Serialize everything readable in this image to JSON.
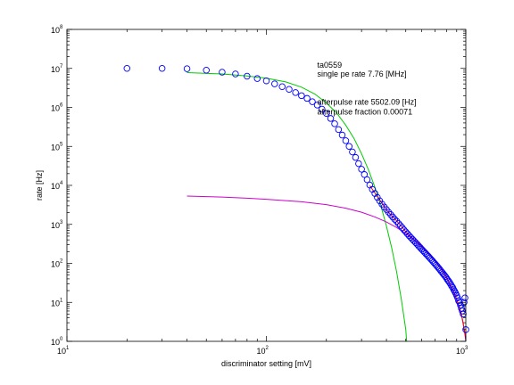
{
  "chart_data": {
    "type": "scatter",
    "xscale": "log",
    "yscale": "log",
    "xlim": [
      10,
      1000
    ],
    "ylim": [
      1,
      100000000
    ],
    "xlabel": "discriminator setting [mV]",
    "ylabel": "rate [Hz]",
    "xticks": [
      {
        "base": "10",
        "exp": "1",
        "value": 10
      },
      {
        "base": "10",
        "exp": "2",
        "value": 100
      },
      {
        "base": "10",
        "exp": "3",
        "value": 1000
      }
    ],
    "yticks": [
      {
        "base": "10",
        "exp": "0",
        "value": 1
      },
      {
        "base": "10",
        "exp": "1",
        "value": 10
      },
      {
        "base": "10",
        "exp": "2",
        "value": 100
      },
      {
        "base": "10",
        "exp": "3",
        "value": 1000
      },
      {
        "base": "10",
        "exp": "4",
        "value": 10000
      },
      {
        "base": "10",
        "exp": "5",
        "value": 100000
      },
      {
        "base": "10",
        "exp": "6",
        "value": 1000000
      },
      {
        "base": "10",
        "exp": "7",
        "value": 10000000
      },
      {
        "base": "10",
        "exp": "8",
        "value": 100000000
      }
    ],
    "grid": false,
    "annotations": [
      {
        "text": "ta0559",
        "x": 180,
        "y": 10500000
      },
      {
        "text": "single pe rate 7.76 [MHz]",
        "x": 180,
        "y": 6200000
      },
      {
        "text": "afterpulse rate 5502.09 [Hz]",
        "x": 180,
        "y": 1160000
      },
      {
        "text": "afterpulse fraction 0.00071",
        "x": 180,
        "y": 660000
      }
    ],
    "series": [
      {
        "marker": "circle",
        "color": "#0000ff",
        "points": [
          [
            20,
            10000000
          ],
          [
            30,
            10000000
          ],
          [
            40,
            9800000
          ],
          [
            50,
            9000000
          ],
          [
            60,
            8000000
          ],
          [
            70,
            7200000
          ],
          [
            80,
            6300000
          ],
          [
            90,
            5500000
          ],
          [
            100,
            4800000
          ],
          [
            110,
            4000000
          ],
          [
            120,
            3400000
          ],
          [
            130,
            2900000
          ],
          [
            140,
            2400000
          ],
          [
            150,
            2000000
          ],
          [
            160,
            1700000
          ],
          [
            170,
            1400000
          ],
          [
            180,
            1150000
          ],
          [
            190,
            900000
          ],
          [
            200,
            700000
          ],
          [
            210,
            520000
          ],
          [
            220,
            380000
          ],
          [
            230,
            270000
          ],
          [
            240,
            195000
          ],
          [
            250,
            140000
          ],
          [
            260,
            100000
          ],
          [
            270,
            72000
          ],
          [
            280,
            52000
          ],
          [
            290,
            36000
          ],
          [
            300,
            26000
          ],
          [
            310,
            19000
          ],
          [
            320,
            14000
          ],
          [
            330,
            10200
          ],
          [
            340,
            7900
          ],
          [
            350,
            6200
          ],
          [
            360,
            4900
          ],
          [
            370,
            4000
          ],
          [
            380,
            3300
          ],
          [
            390,
            2800
          ],
          [
            400,
            2400
          ],
          [
            410,
            2050
          ],
          [
            420,
            1780
          ],
          [
            430,
            1550
          ],
          [
            440,
            1350
          ],
          [
            450,
            1200
          ],
          [
            460,
            1050
          ],
          [
            470,
            930
          ],
          [
            480,
            820
          ],
          [
            490,
            720
          ],
          [
            500,
            640
          ],
          [
            510,
            570
          ],
          [
            520,
            510
          ],
          [
            530,
            460
          ],
          [
            540,
            415
          ],
          [
            550,
            375
          ],
          [
            560,
            340
          ],
          [
            570,
            310
          ],
          [
            580,
            280
          ],
          [
            590,
            255
          ],
          [
            600,
            232
          ],
          [
            610,
            212
          ],
          [
            620,
            194
          ],
          [
            630,
            178
          ],
          [
            640,
            163
          ],
          [
            650,
            150
          ],
          [
            660,
            137
          ],
          [
            670,
            126
          ],
          [
            680,
            116
          ],
          [
            690,
            106
          ],
          [
            700,
            98
          ],
          [
            710,
            90
          ],
          [
            720,
            83
          ],
          [
            730,
            76
          ],
          [
            740,
            70
          ],
          [
            750,
            64
          ],
          [
            760,
            59
          ],
          [
            770,
            54
          ],
          [
            780,
            50
          ],
          [
            790,
            46
          ],
          [
            800,
            42
          ],
          [
            810,
            38
          ],
          [
            820,
            35
          ],
          [
            830,
            32
          ],
          [
            840,
            29
          ],
          [
            850,
            26
          ],
          [
            860,
            24
          ],
          [
            870,
            21
          ],
          [
            880,
            19
          ],
          [
            890,
            17
          ],
          [
            900,
            15
          ],
          [
            910,
            13
          ],
          [
            920,
            11
          ],
          [
            930,
            10
          ],
          [
            940,
            8.5
          ],
          [
            950,
            7
          ],
          [
            960,
            6
          ],
          [
            970,
            5
          ],
          [
            980,
            10
          ],
          [
            990,
            13
          ],
          [
            1000,
            2
          ]
        ]
      },
      {
        "name": "",
        "type": "line",
        "color": "#00cc00",
        "points": [
          [
            40,
            7800000
          ],
          [
            60,
            7200000
          ],
          [
            80,
            6400000
          ],
          [
            100,
            5600000
          ],
          [
            125,
            4500000
          ],
          [
            150,
            3300000
          ],
          [
            175,
            2200000
          ],
          [
            200,
            1300000
          ],
          [
            225,
            720000
          ],
          [
            250,
            350000
          ],
          [
            275,
            160000
          ],
          [
            300,
            65000
          ],
          [
            325,
            25000
          ],
          [
            350,
            9000
          ],
          [
            375,
            3000
          ],
          [
            400,
            900
          ],
          [
            425,
            250
          ],
          [
            450,
            60
          ],
          [
            475,
            12
          ],
          [
            500,
            2
          ],
          [
            505,
            1
          ]
        ]
      },
      {
        "name": "",
        "type": "line",
        "color": "#cc00cc",
        "points": [
          [
            40,
            5300
          ],
          [
            60,
            5000
          ],
          [
            80,
            4700
          ],
          [
            100,
            4400
          ],
          [
            150,
            3800
          ],
          [
            200,
            3200
          ],
          [
            250,
            2600
          ],
          [
            300,
            2050
          ],
          [
            350,
            1550
          ],
          [
            400,
            1150
          ],
          [
            450,
            830
          ],
          [
            500,
            580
          ],
          [
            550,
            400
          ],
          [
            600,
            270
          ],
          [
            650,
            180
          ],
          [
            700,
            115
          ],
          [
            750,
            72
          ],
          [
            800,
            43
          ],
          [
            850,
            24
          ],
          [
            900,
            12
          ],
          [
            950,
            5
          ],
          [
            980,
            2.2
          ],
          [
            1000,
            1
          ]
        ]
      },
      {
        "name": "",
        "type": "line",
        "color": "#ff0000",
        "points": [
          [
            330,
            9800
          ],
          [
            350,
            6400
          ],
          [
            380,
            3500
          ],
          [
            410,
            2000
          ],
          [
            440,
            1400
          ],
          [
            470,
            950
          ],
          [
            500,
            650
          ],
          [
            550,
            410
          ],
          [
            600,
            275
          ],
          [
            650,
            182
          ],
          [
            700,
            116
          ],
          [
            750,
            73
          ],
          [
            800,
            44
          ],
          [
            850,
            24
          ],
          [
            900,
            12
          ],
          [
            950,
            5
          ],
          [
            1000,
            1.2
          ]
        ]
      }
    ]
  }
}
